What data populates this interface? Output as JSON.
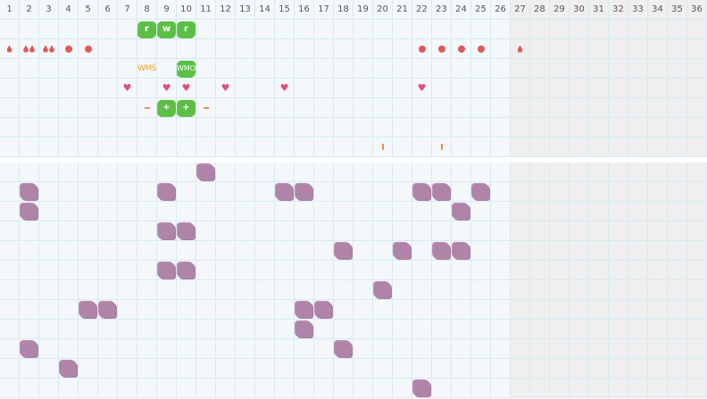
{
  "days": [
    "1",
    "2",
    "3",
    "4",
    "5",
    "6",
    "7",
    "8",
    "9",
    "10",
    "11",
    "12",
    "13",
    "14",
    "15",
    "16",
    "17",
    "18",
    "19",
    "20",
    "21",
    "22",
    "23",
    "24",
    "25",
    "26",
    "27",
    "28",
    "29",
    "30",
    "31",
    "32",
    "33",
    "34",
    "35",
    "36"
  ],
  "future_from_day": 27,
  "colors": {
    "bleeding": "#e05a5a",
    "heart": "#e0507a",
    "green": "#5cbf45",
    "blob": "#b084a8",
    "note": "#f0a020",
    "accent": "#f08a5a",
    "grid": "#d6eaf3"
  },
  "top_rows": [
    {
      "marks": [
        {
          "day": 8,
          "type": "green",
          "label": "r"
        },
        {
          "day": 9,
          "type": "green",
          "label": "w"
        },
        {
          "day": 10,
          "type": "green",
          "label": "r"
        }
      ]
    },
    {
      "marks": [
        {
          "day": 1,
          "type": "drop",
          "count": 1
        },
        {
          "day": 2,
          "type": "drop",
          "count": 2
        },
        {
          "day": 3,
          "type": "drop",
          "count": 2
        },
        {
          "day": 4,
          "type": "dot"
        },
        {
          "day": 5,
          "type": "dot"
        },
        {
          "day": 22,
          "type": "dot"
        },
        {
          "day": 23,
          "type": "dot"
        },
        {
          "day": 24,
          "type": "dot"
        },
        {
          "day": 25,
          "type": "dot"
        },
        {
          "day": 27,
          "type": "drop",
          "count": 1
        }
      ]
    },
    {
      "marks": [
        {
          "day": 8,
          "type": "text",
          "label": "WMŚ"
        },
        {
          "day": 10,
          "type": "green",
          "label": "WMO"
        }
      ]
    },
    {
      "marks": [
        {
          "day": 7,
          "type": "heart"
        },
        {
          "day": 9,
          "type": "heart"
        },
        {
          "day": 10,
          "type": "heart"
        },
        {
          "day": 12,
          "type": "heart"
        },
        {
          "day": 15,
          "type": "heart"
        },
        {
          "day": 22,
          "type": "heart"
        }
      ]
    },
    {
      "marks": [
        {
          "day": 8,
          "type": "minus"
        },
        {
          "day": 9,
          "type": "green",
          "label": "+"
        },
        {
          "day": 10,
          "type": "green",
          "label": "+"
        },
        {
          "day": 11,
          "type": "minus"
        }
      ]
    },
    {
      "marks": []
    },
    {
      "marks": [
        {
          "day": 20,
          "type": "bar"
        },
        {
          "day": 23,
          "type": "bar"
        }
      ]
    }
  ],
  "bottom_rows": [
    [
      11
    ],
    [
      2,
      9,
      15,
      16,
      22,
      23,
      25
    ],
    [
      2,
      24
    ],
    [
      9,
      10
    ],
    [
      18,
      21,
      23,
      24
    ],
    [
      9,
      10
    ],
    [
      20
    ],
    [
      5,
      6,
      16,
      17
    ],
    [
      16
    ],
    [
      2,
      18
    ],
    [
      4
    ],
    [
      22
    ]
  ]
}
